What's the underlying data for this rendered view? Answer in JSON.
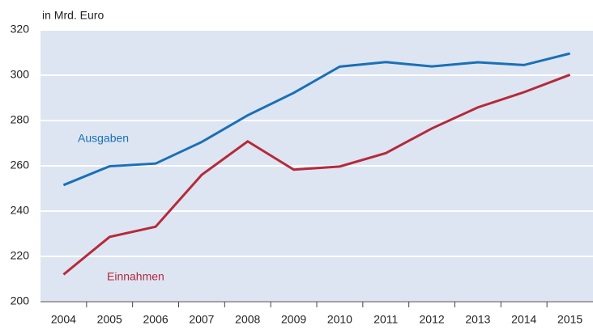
{
  "chart_data": {
    "type": "line",
    "title": "in Mrd. Euro",
    "categories": [
      "2004",
      "2005",
      "2006",
      "2007",
      "2008",
      "2009",
      "2010",
      "2011",
      "2012",
      "2013",
      "2014",
      "2015"
    ],
    "series": [
      {
        "name": "Ausgaben",
        "color": "#1a70b6",
        "values": [
          251.5,
          259.8,
          261,
          270.5,
          282.3,
          292.2,
          303.8,
          305.8,
          303.9,
          305.7,
          304.5,
          309.6
        ]
      },
      {
        "name": "Einnahmen",
        "color": "#b52a3a",
        "values": [
          212,
          228.6,
          233.1,
          256,
          270.8,
          258.3,
          259.7,
          265.6,
          276.5,
          285.8,
          292.5,
          300.2
        ]
      }
    ],
    "ylim": [
      200,
      320
    ],
    "yticks": [
      200,
      220,
      240,
      260,
      280,
      300,
      320
    ],
    "grid": true
  }
}
